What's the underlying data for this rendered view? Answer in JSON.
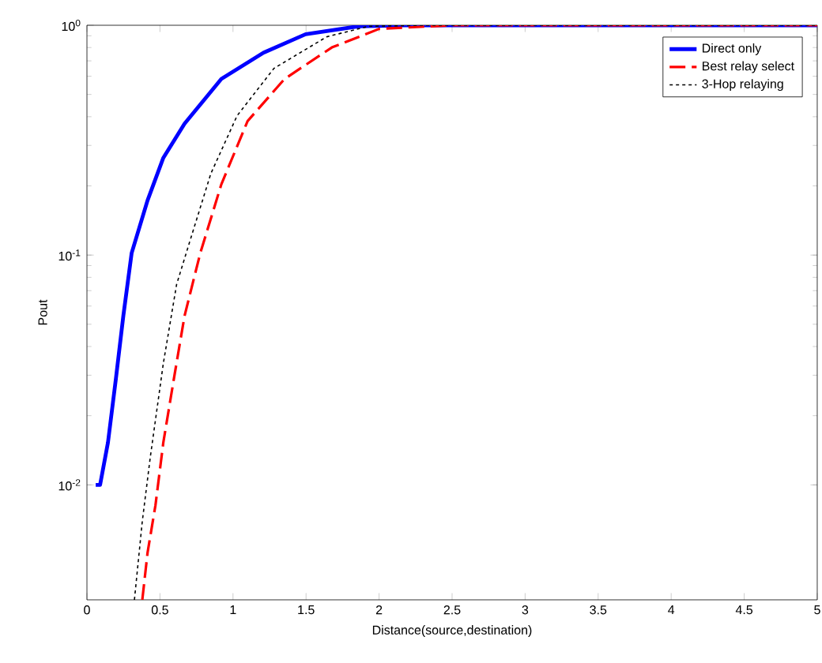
{
  "chart_data": {
    "type": "line",
    "xlabel": "Distance(source,destination)",
    "ylabel": "Pout",
    "log": "y",
    "xlim": [
      0,
      5
    ],
    "ylim": [
      0.00316,
      1
    ],
    "xticks": [
      0,
      0.5,
      1,
      1.5,
      2,
      2.5,
      3,
      3.5,
      4,
      4.5,
      5
    ],
    "yticks": [
      {
        "value": 0.01,
        "label": "10$^{-2}$"
      },
      {
        "value": 0.1,
        "label": "10$^{-1}$"
      },
      {
        "value": 1,
        "label": "10$^{0}$"
      }
    ],
    "legend": "top right",
    "marker": "none",
    "series": [
      {
        "name": "Direct only",
        "color": "#0000ff",
        "line_style": "solid",
        "x": [
          0.06,
          0.09,
          0.144,
          0.198,
          0.249,
          0.306,
          0.415,
          0.523,
          0.668,
          0.92,
          1.209,
          1.497,
          1.86,
          2.2,
          5
        ],
        "values": [
          0.01,
          0.01,
          0.0153,
          0.0289,
          0.0543,
          0.102,
          0.173,
          0.265,
          0.373,
          0.584,
          0.76,
          0.914,
          0.99,
          1,
          1
        ]
      },
      {
        "name": "Best relay select",
        "color": "#ff0000",
        "line_style": "dashed",
        "x": [
          0.379,
          0.415,
          0.469,
          0.523,
          0.595,
          0.668,
          0.776,
          0.92,
          1.1,
          1.353,
          1.677,
          2.0,
          2.5,
          5
        ],
        "values": [
          0.00316,
          0.00507,
          0.00815,
          0.0153,
          0.0289,
          0.0543,
          0.102,
          0.203,
          0.383,
          0.584,
          0.801,
          0.964,
          1,
          1
        ]
      },
      {
        "name": "3-Hop relaying",
        "color": "#000000",
        "line_style": "dotted",
        "x": [
          0.325,
          0.379,
          0.433,
          0.523,
          0.614,
          0.703,
          0.848,
          1.028,
          1.28,
          1.642,
          1.93,
          2.3,
          5
        ],
        "values": [
          0.00316,
          0.00695,
          0.0131,
          0.0338,
          0.0746,
          0.114,
          0.226,
          0.404,
          0.649,
          0.891,
          0.99,
          1,
          1
        ]
      }
    ]
  }
}
